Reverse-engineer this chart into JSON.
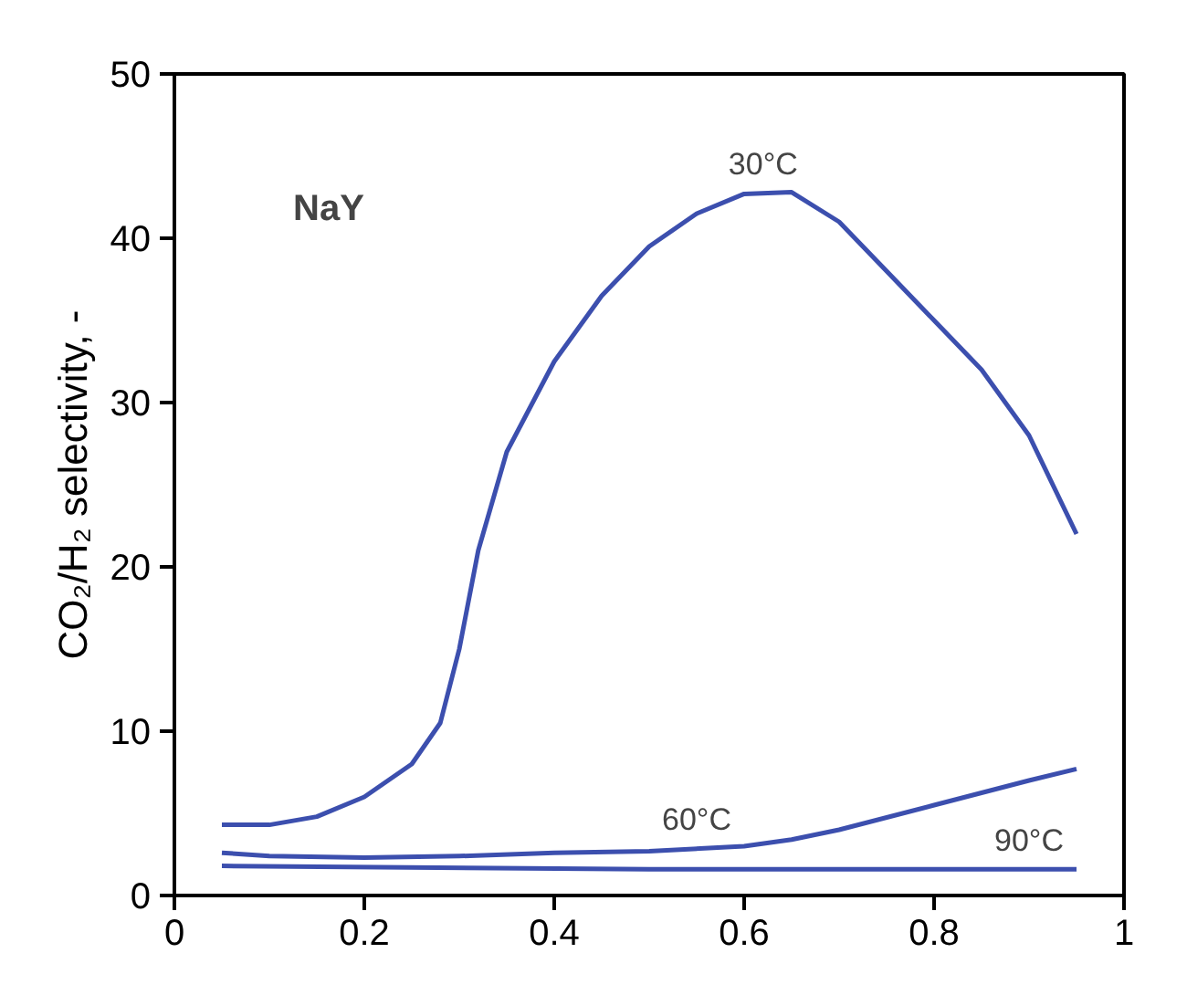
{
  "chart_data": {
    "type": "line",
    "ylabel": "CO₂/H₂ selectivity, -",
    "xlim": [
      0,
      1
    ],
    "ylim": [
      0,
      50
    ],
    "xticks": [
      0,
      0.2,
      0.4,
      0.6,
      0.8,
      1
    ],
    "yticks": [
      0,
      10,
      20,
      30,
      40,
      50
    ],
    "grid": false,
    "marker": "none",
    "line_style": "solid",
    "series": [
      {
        "color": "#3c4fae",
        "x": [
          0.05,
          0.1,
          0.15,
          0.2,
          0.25,
          0.28,
          0.3,
          0.32,
          0.35,
          0.4,
          0.45,
          0.5,
          0.55,
          0.6,
          0.65,
          0.7,
          0.75,
          0.8,
          0.85,
          0.9,
          0.95
        ],
        "values": [
          4.3,
          4.3,
          4.8,
          6,
          8,
          10.5,
          15,
          21,
          27,
          32.5,
          36.5,
          39.5,
          41.5,
          42.7,
          42.8,
          41,
          38,
          35,
          32,
          28,
          22
        ]
      },
      {
        "color": "#3c4fae",
        "x": [
          0.05,
          0.1,
          0.2,
          0.3,
          0.4,
          0.5,
          0.6,
          0.65,
          0.7,
          0.8,
          0.9,
          0.95
        ],
        "values": [
          2.6,
          2.4,
          2.3,
          2.4,
          2.6,
          2.7,
          3.0,
          3.4,
          4.0,
          5.5,
          7.0,
          7.7
        ]
      },
      {
        "color": "#3c4fae",
        "x": [
          0.05,
          0.5,
          0.95
        ],
        "values": [
          1.8,
          1.6,
          1.6
        ]
      }
    ],
    "annotations": [
      "NaY",
      {
        "text": "30°C",
        "x": 0.62,
        "y": 42.8
      },
      {
        "text": "60°C",
        "x": 0.55,
        "y": 2.9
      },
      {
        "text": "90°C",
        "x": 0.9,
        "y": 1.6
      }
    ]
  }
}
